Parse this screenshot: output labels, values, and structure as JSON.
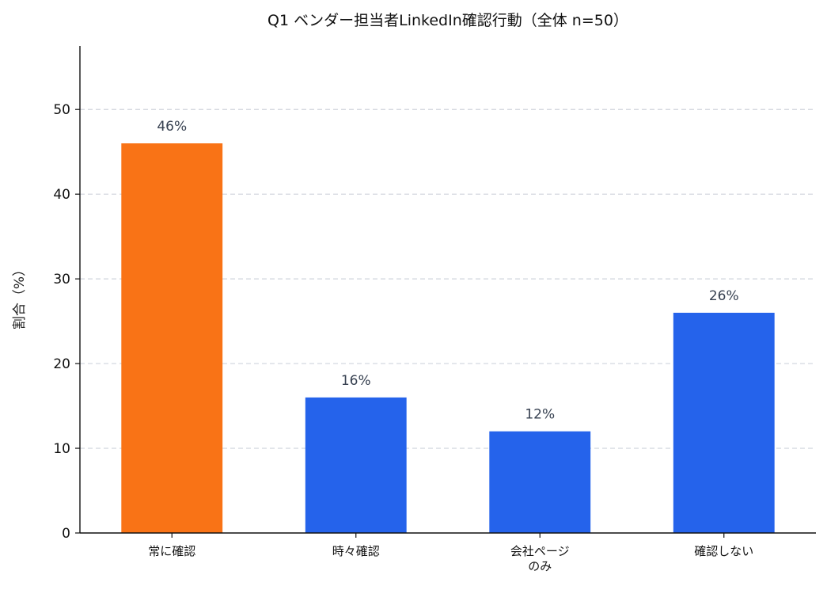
{
  "chart_data": {
    "type": "bar",
    "title": "Q1 ベンダー担当者LinkedIn確認行動（全体 n=50）",
    "ylabel": "割合（%）",
    "xlabel": "",
    "categories": [
      [
        "常に確認"
      ],
      [
        "時々確認"
      ],
      [
        "会社ページ",
        "のみ"
      ],
      [
        "確認しない"
      ]
    ],
    "values": [
      46,
      16,
      12,
      26
    ],
    "data_labels": [
      "46%",
      "16%",
      "12%",
      "26%"
    ],
    "ylim": [
      0,
      57.5
    ],
    "yticks": [
      0,
      10,
      20,
      30,
      40,
      50
    ],
    "grid": true,
    "bar_colors": [
      "#F97316",
      "#2563EB",
      "#2563EB",
      "#2563EB"
    ]
  }
}
